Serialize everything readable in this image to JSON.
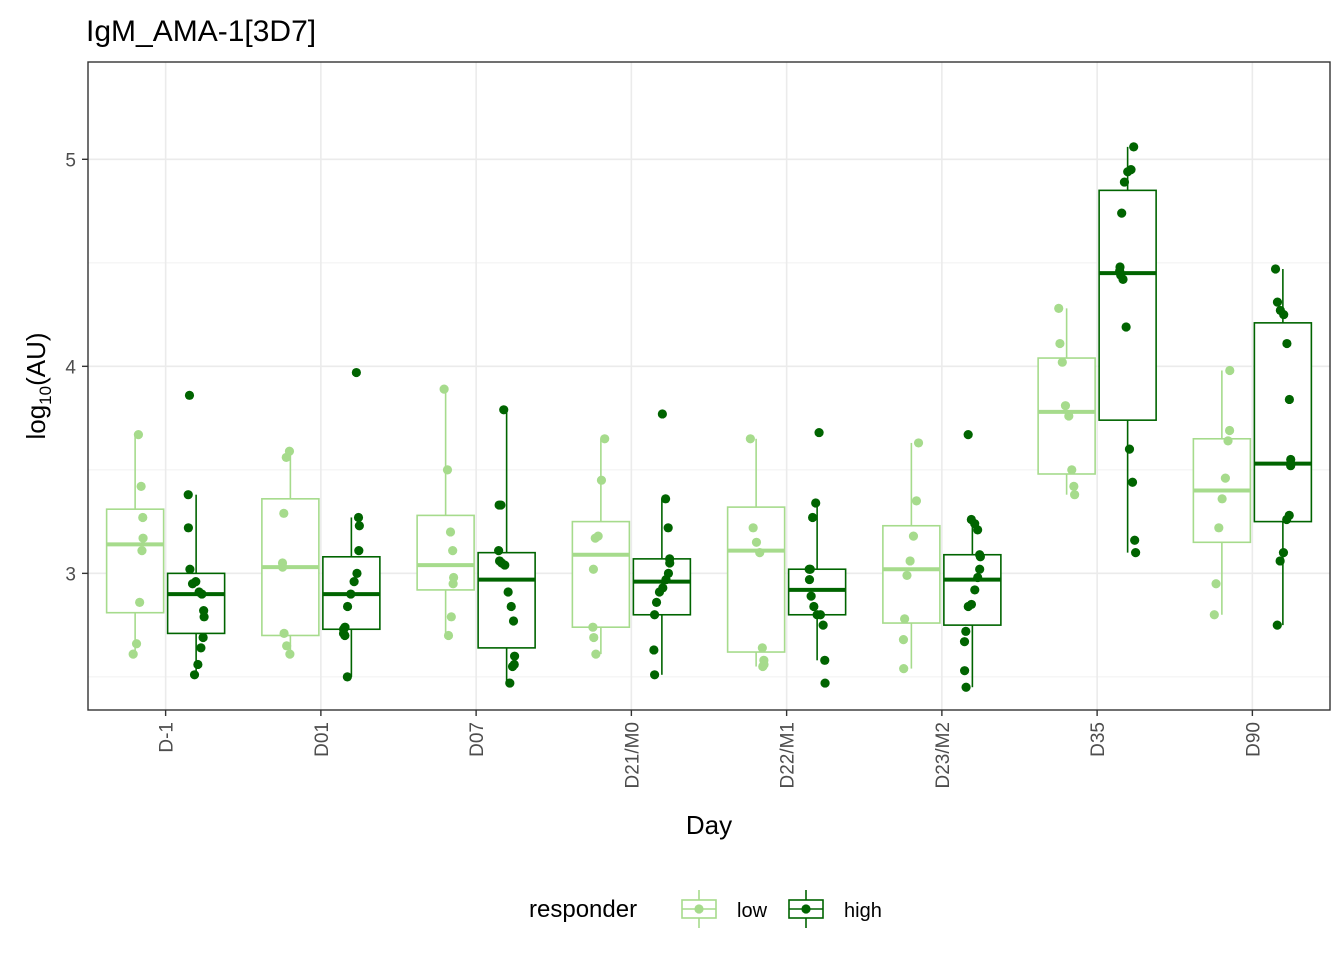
{
  "chart_data": {
    "type": "box",
    "title": "IgM_AMA-1[3D7]",
    "xlabel": "Day",
    "ylabel": {
      "base": "log",
      "sub": "10",
      "rest": "(AU)"
    },
    "ylim": [
      2.34,
      5.47
    ],
    "yticks": [
      3,
      4,
      5
    ],
    "grid": true,
    "legend": {
      "title": "responder",
      "position": "bottom"
    },
    "categories": [
      "D-1",
      "D01",
      "D07",
      "D21/M0",
      "D22/M1",
      "D23/M2",
      "D35",
      "D90"
    ],
    "series": [
      {
        "name": "low",
        "color": "#a6db8c",
        "boxes": [
          {
            "q1": 2.81,
            "median": 3.14,
            "q3": 3.31,
            "lower": 2.61,
            "upper": 3.67
          },
          {
            "q1": 2.7,
            "median": 3.03,
            "q3": 3.36,
            "lower": 2.61,
            "upper": 3.59
          },
          {
            "q1": 2.92,
            "median": 3.04,
            "q3": 3.28,
            "lower": 2.7,
            "upper": 3.89
          },
          {
            "q1": 2.74,
            "median": 3.09,
            "q3": 3.25,
            "lower": 2.61,
            "upper": 3.65
          },
          {
            "q1": 2.62,
            "median": 3.11,
            "q3": 3.32,
            "lower": 2.55,
            "upper": 3.65
          },
          {
            "q1": 2.76,
            "median": 3.02,
            "q3": 3.23,
            "lower": 2.54,
            "upper": 3.63
          },
          {
            "q1": 3.48,
            "median": 3.78,
            "q3": 4.04,
            "lower": 3.38,
            "upper": 4.28
          },
          {
            "q1": 3.15,
            "median": 3.4,
            "q3": 3.65,
            "lower": 2.8,
            "upper": 3.98
          }
        ],
        "points": [
          [
            3.67,
            3.42,
            3.27,
            3.17,
            3.11,
            2.86,
            2.66,
            2.61
          ],
          [
            3.59,
            3.56,
            3.29,
            3.05,
            3.03,
            2.71,
            2.65,
            2.61
          ],
          [
            3.89,
            3.5,
            3.2,
            3.11,
            2.98,
            2.95,
            2.79,
            2.7
          ],
          [
            3.65,
            3.45,
            3.18,
            3.17,
            3.02,
            2.74,
            2.69,
            2.61
          ],
          [
            3.65,
            3.22,
            3.15,
            3.1,
            2.64,
            2.58,
            2.56,
            2.55
          ],
          [
            3.63,
            3.35,
            3.18,
            3.06,
            2.99,
            2.78,
            2.68,
            2.54
          ],
          [
            4.28,
            4.11,
            4.02,
            3.81,
            3.76,
            3.5,
            3.42,
            3.38
          ],
          [
            3.98,
            3.69,
            3.64,
            3.46,
            3.36,
            3.22,
            2.95,
            2.8
          ]
        ]
      },
      {
        "name": "high",
        "color": "#006400",
        "boxes": [
          {
            "q1": 2.71,
            "median": 2.9,
            "q3": 3.0,
            "lower": 2.51,
            "upper": 3.38
          },
          {
            "q1": 2.73,
            "median": 2.9,
            "q3": 3.08,
            "lower": 2.5,
            "upper": 3.27
          },
          {
            "q1": 2.64,
            "median": 2.97,
            "q3": 3.1,
            "lower": 2.47,
            "upper": 3.79
          },
          {
            "q1": 2.8,
            "median": 2.96,
            "q3": 3.07,
            "lower": 2.51,
            "upper": 3.36
          },
          {
            "q1": 2.8,
            "median": 2.92,
            "q3": 3.02,
            "lower": 2.58,
            "upper": 3.34
          },
          {
            "q1": 2.75,
            "median": 2.97,
            "q3": 3.09,
            "lower": 2.45,
            "upper": 3.26
          },
          {
            "q1": 3.74,
            "median": 4.45,
            "q3": 4.85,
            "lower": 3.1,
            "upper": 5.06
          },
          {
            "q1": 3.25,
            "median": 3.53,
            "q3": 4.21,
            "lower": 2.75,
            "upper": 4.47
          }
        ],
        "points": [
          [
            3.86,
            3.38,
            3.22,
            3.02,
            2.95,
            2.96,
            2.91,
            2.9,
            2.82,
            2.79,
            2.69,
            2.64,
            2.56,
            2.51
          ],
          [
            3.97,
            3.27,
            3.23,
            3.11,
            3.0,
            2.96,
            2.9,
            2.84,
            2.74,
            2.73,
            2.71,
            2.7,
            2.5
          ],
          [
            3.79,
            3.33,
            3.33,
            3.11,
            3.06,
            3.05,
            3.04,
            2.91,
            2.84,
            2.77,
            2.6,
            2.56,
            2.55,
            2.47
          ],
          [
            3.77,
            3.36,
            3.22,
            3.07,
            3.05,
            3.0,
            2.97,
            2.93,
            2.91,
            2.86,
            2.8,
            2.63,
            2.51
          ],
          [
            3.68,
            3.34,
            3.27,
            3.02,
            3.02,
            2.97,
            2.89,
            2.84,
            2.8,
            2.8,
            2.75,
            2.58,
            2.47
          ],
          [
            3.67,
            3.26,
            3.24,
            3.21,
            3.09,
            3.08,
            3.02,
            2.98,
            2.92,
            2.85,
            2.84,
            2.72,
            2.67,
            2.53,
            2.45
          ],
          [
            5.06,
            4.95,
            4.94,
            4.89,
            4.74,
            4.48,
            4.46,
            4.44,
            4.42,
            4.19,
            3.6,
            3.44,
            3.16,
            3.1
          ],
          [
            4.47,
            4.31,
            4.27,
            4.25,
            4.11,
            3.84,
            3.55,
            3.52,
            3.28,
            3.26,
            3.1,
            3.06,
            2.75
          ]
        ]
      }
    ]
  }
}
